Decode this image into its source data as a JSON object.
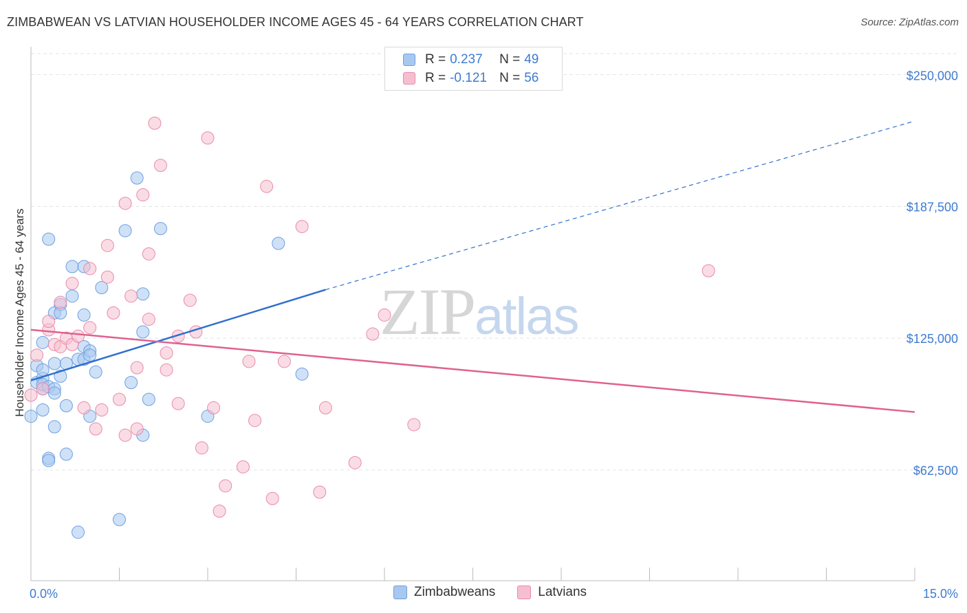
{
  "header": {
    "title": "ZIMBABWEAN VS LATVIAN HOUSEHOLDER INCOME AGES 45 - 64 YEARS CORRELATION CHART",
    "source": "Source: ZipAtlas.com"
  },
  "watermark": {
    "zip": "ZIP",
    "atlas": "atlas"
  },
  "legend": {
    "rows": [
      {
        "r_label": "R =",
        "r_value": "0.237",
        "n_label": "N =",
        "n_value": "49"
      },
      {
        "r_label": "R =",
        "r_value": "-0.121",
        "n_label": "N =",
        "n_value": "56"
      }
    ]
  },
  "bottom_legend": [
    "Zimbabweans",
    "Latvians"
  ],
  "colors": {
    "blue_fill": "#a8c8f0",
    "blue_stroke": "#6d9fe0",
    "blue_line": "#2f6fcf",
    "pink_fill": "#f6bfd0",
    "pink_stroke": "#e98aa9",
    "pink_line": "#e0618e",
    "tick_text": "#3d7bd1",
    "grid": "#e3e3e3"
  },
  "chart_data": {
    "type": "scatter",
    "title": "ZIMBABWEAN VS LATVIAN HOUSEHOLDER INCOME AGES 45 - 64 YEARS CORRELATION CHART",
    "xlabel": "",
    "ylabel": "Householder Income Ages 45 - 64 years",
    "xlim": [
      0,
      15
    ],
    "ylim": [
      10000,
      260000
    ],
    "x_tick_labels": [
      "0.0%",
      "15.0%"
    ],
    "y_ticks": [
      62500,
      125000,
      187500,
      250000
    ],
    "y_tick_labels": [
      "$62,500",
      "$125,000",
      "$187,500",
      "$250,000"
    ],
    "grid": "horizontal dashed",
    "legend_position": "top-center",
    "series": [
      {
        "name": "Zimbabweans",
        "R": 0.237,
        "N": 49,
        "trend": {
          "x": [
            0.0,
            5.0,
            15.0
          ],
          "y": [
            105000,
            148000,
            228000
          ],
          "solid_until": 5.0
        },
        "points": [
          [
            0.0,
            88000
          ],
          [
            0.1,
            104000
          ],
          [
            0.1,
            112000
          ],
          [
            0.2,
            106000
          ],
          [
            0.2,
            110000
          ],
          [
            0.2,
            101000
          ],
          [
            0.2,
            103000
          ],
          [
            0.2,
            91000
          ],
          [
            0.2,
            123000
          ],
          [
            0.3,
            102000
          ],
          [
            0.3,
            68000
          ],
          [
            0.3,
            67000
          ],
          [
            0.3,
            172000
          ],
          [
            0.4,
            137000
          ],
          [
            0.4,
            101000
          ],
          [
            0.4,
            99000
          ],
          [
            0.4,
            83000
          ],
          [
            0.5,
            107000
          ],
          [
            0.5,
            141000
          ],
          [
            0.5,
            137000
          ],
          [
            0.6,
            93000
          ],
          [
            0.6,
            70000
          ],
          [
            0.7,
            159000
          ],
          [
            0.7,
            145000
          ],
          [
            0.8,
            33000
          ],
          [
            0.8,
            115000
          ],
          [
            0.9,
            115000
          ],
          [
            0.9,
            159000
          ],
          [
            0.9,
            136000
          ],
          [
            0.9,
            121000
          ],
          [
            1.0,
            119000
          ],
          [
            1.0,
            117000
          ],
          [
            1.0,
            88000
          ],
          [
            1.1,
            109000
          ],
          [
            1.2,
            149000
          ],
          [
            1.5,
            39000
          ],
          [
            1.6,
            176000
          ],
          [
            1.7,
            104000
          ],
          [
            1.8,
            201000
          ],
          [
            1.9,
            128000
          ],
          [
            1.9,
            146000
          ],
          [
            1.9,
            79000
          ],
          [
            2.0,
            96000
          ],
          [
            2.2,
            177000
          ],
          [
            3.0,
            88000
          ],
          [
            4.2,
            170000
          ],
          [
            4.6,
            108000
          ],
          [
            0.4,
            113000
          ],
          [
            0.6,
            113000
          ]
        ]
      },
      {
        "name": "Latvians",
        "R": -0.121,
        "N": 56,
        "trend": {
          "x": [
            0.0,
            15.0
          ],
          "y": [
            129000,
            90000
          ]
        },
        "points": [
          [
            0.0,
            98000
          ],
          [
            0.1,
            117000
          ],
          [
            0.2,
            101000
          ],
          [
            0.3,
            129000
          ],
          [
            0.3,
            133000
          ],
          [
            0.4,
            122000
          ],
          [
            0.5,
            121000
          ],
          [
            0.5,
            142000
          ],
          [
            0.6,
            125000
          ],
          [
            0.7,
            151000
          ],
          [
            0.7,
            122000
          ],
          [
            0.8,
            126000
          ],
          [
            0.9,
            92000
          ],
          [
            1.0,
            130000
          ],
          [
            1.0,
            158000
          ],
          [
            1.1,
            82000
          ],
          [
            1.2,
            91000
          ],
          [
            1.3,
            169000
          ],
          [
            1.3,
            154000
          ],
          [
            1.4,
            137000
          ],
          [
            1.5,
            96000
          ],
          [
            1.6,
            79000
          ],
          [
            1.6,
            189000
          ],
          [
            1.7,
            145000
          ],
          [
            1.8,
            111000
          ],
          [
            1.8,
            82000
          ],
          [
            1.9,
            193000
          ],
          [
            2.0,
            165000
          ],
          [
            2.0,
            134000
          ],
          [
            2.1,
            227000
          ],
          [
            2.2,
            207000
          ],
          [
            2.3,
            118000
          ],
          [
            2.3,
            110000
          ],
          [
            2.5,
            126000
          ],
          [
            2.5,
            94000
          ],
          [
            2.7,
            143000
          ],
          [
            2.8,
            128000
          ],
          [
            2.9,
            73000
          ],
          [
            3.0,
            220000
          ],
          [
            3.1,
            92000
          ],
          [
            3.2,
            43000
          ],
          [
            3.3,
            55000
          ],
          [
            3.6,
            64000
          ],
          [
            3.7,
            114000
          ],
          [
            3.8,
            86000
          ],
          [
            4.0,
            197000
          ],
          [
            4.1,
            49000
          ],
          [
            4.3,
            114000
          ],
          [
            4.6,
            178000
          ],
          [
            4.9,
            52000
          ],
          [
            5.0,
            92000
          ],
          [
            5.5,
            66000
          ],
          [
            5.8,
            127000
          ],
          [
            6.0,
            136000
          ],
          [
            6.5,
            84000
          ],
          [
            11.5,
            157000
          ]
        ]
      }
    ]
  }
}
